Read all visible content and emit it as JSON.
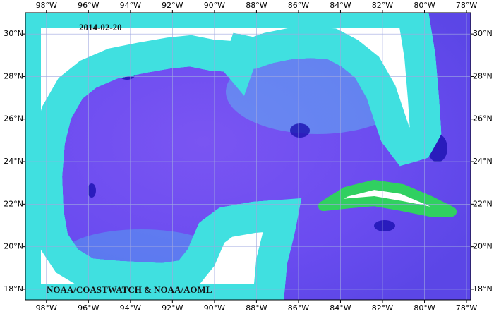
{
  "map": {
    "date": "2014-02-20",
    "credit": "NOAA/COASTWATCH & NOAA/AOML",
    "xlim": [
      -99,
      -77.8
    ],
    "ylim": [
      17.5,
      31
    ],
    "xticks": [
      {
        "value": -98,
        "label": "98°W"
      },
      {
        "value": -96,
        "label": "96°W"
      },
      {
        "value": -94,
        "label": "94°W"
      },
      {
        "value": -92,
        "label": "92°W"
      },
      {
        "value": -90,
        "label": "90°W"
      },
      {
        "value": -88,
        "label": "88°W"
      },
      {
        "value": -86,
        "label": "86°W"
      },
      {
        "value": -84,
        "label": "84°W"
      },
      {
        "value": -82,
        "label": "82°W"
      },
      {
        "value": -80,
        "label": "80°W"
      },
      {
        "value": -78,
        "label": "78°W"
      }
    ],
    "yticks": [
      {
        "value": 18,
        "label": "18°N"
      },
      {
        "value": 20,
        "label": "20°N"
      },
      {
        "value": 22,
        "label": "22°N"
      },
      {
        "value": 24,
        "label": "24°N"
      },
      {
        "value": 26,
        "label": "26°N"
      },
      {
        "value": 28,
        "label": "28°N"
      },
      {
        "value": 30,
        "label": "30°N"
      }
    ]
  }
}
